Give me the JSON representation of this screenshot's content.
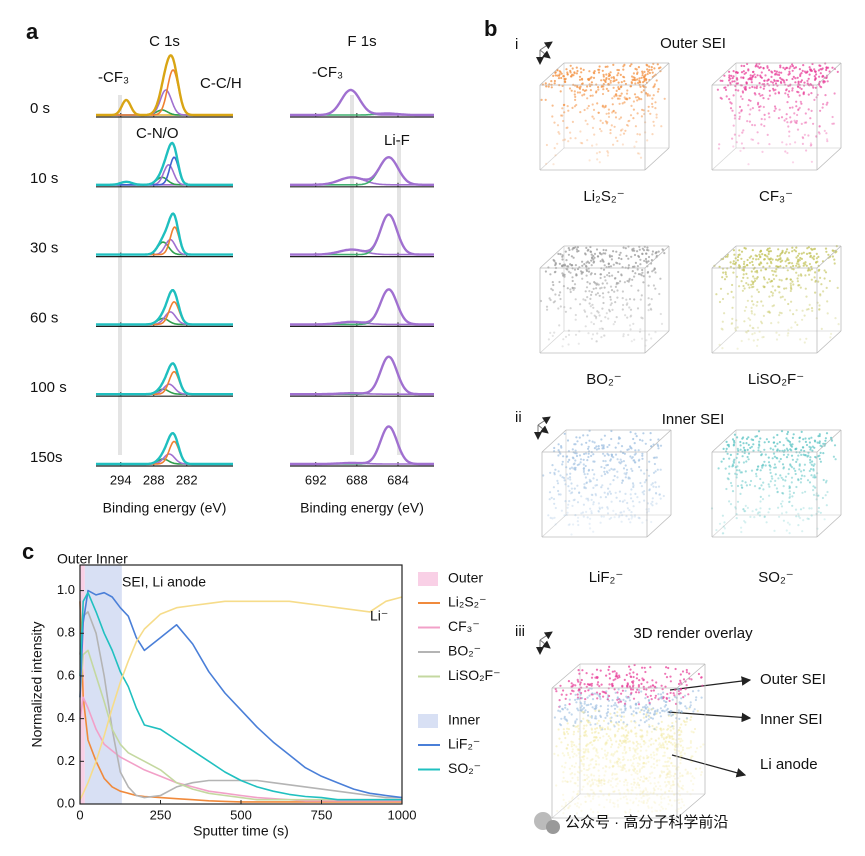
{
  "panel_labels": [
    "a",
    "b",
    "c"
  ],
  "chart_data": [
    {
      "type": "spectra",
      "title": "C 1s",
      "xlabel": "Binding energy (eV)",
      "xlim": [
        298.5,
        273.6
      ],
      "xticks": [
        294,
        288,
        282
      ],
      "row_labels": [
        "0 s",
        "10 s",
        "30 s",
        "60 s",
        "100 s",
        "150s"
      ],
      "annotations": [
        "-CF₃",
        "C-C/H",
        "C-N/O"
      ],
      "rows": [
        {
          "envelope_color": "#d9a514",
          "components": [
            {
              "center": 293,
              "height": 0.3,
              "width": 0.8,
              "color": "#e0b030"
            },
            {
              "center": 286.5,
              "height": 0.1,
              "width": 1.0,
              "color": "#30a050"
            },
            {
              "center": 285.8,
              "height": 0.5,
              "width": 1.0,
              "color": "#a070d0"
            },
            {
              "center": 284.5,
              "height": 0.9,
              "width": 1.0,
              "color": "#f08030"
            }
          ]
        },
        {
          "envelope_color": "#1fbfbf",
          "components": [
            {
              "center": 293,
              "height": 0.06,
              "width": 1.0,
              "color": "#a070d0"
            },
            {
              "center": 286.5,
              "height": 0.15,
              "width": 1.0,
              "color": "#30a050"
            },
            {
              "center": 285.3,
              "height": 0.4,
              "width": 0.9,
              "color": "#a070d0"
            },
            {
              "center": 284.3,
              "height": 0.55,
              "width": 0.8,
              "color": "#4060d0"
            }
          ]
        },
        {
          "envelope_color": "#1fbfbf",
          "components": [
            {
              "center": 286.3,
              "height": 0.25,
              "width": 1.0,
              "color": "#30a050"
            },
            {
              "center": 285,
              "height": 0.3,
              "width": 0.9,
              "color": "#a070d0"
            },
            {
              "center": 284.2,
              "height": 0.55,
              "width": 0.8,
              "color": "#f08030"
            }
          ]
        },
        {
          "envelope_color": "#1fbfbf",
          "components": [
            {
              "center": 286.3,
              "height": 0.12,
              "width": 1.0,
              "color": "#30a050"
            },
            {
              "center": 285,
              "height": 0.25,
              "width": 1.0,
              "color": "#a070d0"
            },
            {
              "center": 284.3,
              "height": 0.45,
              "width": 0.9,
              "color": "#f08030"
            }
          ]
        },
        {
          "envelope_color": "#1fbfbf",
          "components": [
            {
              "center": 286.3,
              "height": 0.1,
              "width": 1.0,
              "color": "#30a050"
            },
            {
              "center": 285.2,
              "height": 0.2,
              "width": 1.0,
              "color": "#a070d0"
            },
            {
              "center": 284.3,
              "height": 0.45,
              "width": 0.9,
              "color": "#f08030"
            }
          ]
        },
        {
          "envelope_color": "#1fbfbf",
          "components": [
            {
              "center": 286.3,
              "height": 0.1,
              "width": 1.0,
              "color": "#30a050"
            },
            {
              "center": 285.2,
              "height": 0.2,
              "width": 1.0,
              "color": "#a070d0"
            },
            {
              "center": 284.3,
              "height": 0.45,
              "width": 0.9,
              "color": "#f08030"
            }
          ]
        }
      ]
    },
    {
      "type": "spectra",
      "title": "F 1s",
      "xlabel": "Binding energy (eV)",
      "xlim": [
        694.5,
        680.5
      ],
      "xticks": [
        692,
        688,
        684
      ],
      "annotations": [
        "-CF₃",
        "Li-F"
      ],
      "rows": [
        {
          "envelope_color": "#a070d0",
          "components": [
            {
              "center": 688.6,
              "height": 0.5,
              "width": 0.9,
              "color": "#a070d0"
            },
            {
              "center": 685,
              "height": 0.03,
              "width": 1.0,
              "color": "#40b070"
            }
          ]
        },
        {
          "envelope_color": "#a070d0",
          "components": [
            {
              "center": 688.5,
              "height": 0.15,
              "width": 1.2,
              "color": "#a070d0"
            },
            {
              "center": 684.9,
              "height": 0.55,
              "width": 0.9,
              "color": "#40b070"
            }
          ]
        },
        {
          "envelope_color": "#a070d0",
          "components": [
            {
              "center": 688.5,
              "height": 0.1,
              "width": 1.2,
              "color": "#a070d0"
            },
            {
              "center": 684.9,
              "height": 0.8,
              "width": 0.8,
              "color": "#40b070"
            }
          ]
        },
        {
          "envelope_color": "#a070d0",
          "components": [
            {
              "center": 688.5,
              "height": 0.05,
              "width": 1.2,
              "color": "#a070d0"
            },
            {
              "center": 684.9,
              "height": 0.7,
              "width": 0.8,
              "color": "#40b070"
            }
          ]
        },
        {
          "envelope_color": "#a070d0",
          "components": [
            {
              "center": 688.5,
              "height": 0.02,
              "width": 1.2,
              "color": "#a070d0"
            },
            {
              "center": 684.9,
              "height": 0.75,
              "width": 0.8,
              "color": "#40b070"
            }
          ]
        },
        {
          "envelope_color": "#a070d0",
          "components": [
            {
              "center": 688.5,
              "height": 0.02,
              "width": 1.2,
              "color": "#a070d0"
            },
            {
              "center": 684.9,
              "height": 0.75,
              "width": 0.8,
              "color": "#40b070"
            }
          ]
        }
      ]
    },
    {
      "type": "line",
      "xlabel": "Sputter time (s)",
      "ylabel": "Normalized intensity",
      "xlim": [
        0,
        1000
      ],
      "ylim": [
        0,
        1.12
      ],
      "xticks": [
        0,
        250,
        500,
        750,
        1000
      ],
      "yticks": [
        {
          "value": 0,
          "label": "0.0"
        },
        0.2,
        0.4,
        0.6,
        0.8,
        {
          "value": 1,
          "label": "1.0"
        }
      ],
      "annotations": [
        "Outer Inner",
        "SEI, Li anode"
      ],
      "regions": [
        {
          "name": "Outer",
          "color": "#f9d0e6",
          "range": [
            0,
            15
          ]
        },
        {
          "name": "Inner",
          "color": "#d8e0f4",
          "range": [
            15,
            130
          ]
        }
      ],
      "x": [
        0,
        10,
        25,
        50,
        75,
        100,
        125,
        150,
        175,
        200,
        250,
        300,
        350,
        400,
        450,
        500,
        550,
        600,
        650,
        700,
        750,
        800,
        850,
        900,
        950,
        1000
      ],
      "series": [
        {
          "name": "Li₂S₂⁻",
          "color": "#f08a3c",
          "group": 0,
          "values": [
            0.95,
            0.5,
            0.3,
            0.2,
            0.12,
            0.08,
            0.06,
            0.05,
            0.04,
            0.035,
            0.03,
            0.025,
            0.02,
            0.015,
            0.012,
            0.01,
            0.01,
            0.01,
            0.01,
            0.01,
            0.01,
            0.01,
            0.01,
            0.01,
            0.01,
            0.01
          ]
        },
        {
          "name": "CF₃⁻",
          "color": "#f2a0c8",
          "group": 0,
          "values": [
            0.4,
            0.5,
            0.45,
            0.35,
            0.28,
            0.25,
            0.22,
            0.2,
            0.18,
            0.16,
            0.13,
            0.1,
            0.08,
            0.06,
            0.05,
            0.04,
            0.03,
            0.025,
            0.02,
            0.015,
            0.015,
            0.015,
            0.015,
            0.015,
            0.015,
            0.015
          ]
        },
        {
          "name": "BO₂⁻",
          "color": "#b4b4b4",
          "group": 0,
          "values": [
            0.7,
            0.88,
            0.9,
            0.8,
            0.6,
            0.35,
            0.15,
            0.08,
            0.04,
            0.03,
            0.04,
            0.08,
            0.1,
            0.11,
            0.11,
            0.11,
            0.11,
            0.1,
            0.09,
            0.08,
            0.07,
            0.06,
            0.05,
            0.04,
            0.03,
            0.03
          ]
        },
        {
          "name": "LiSO₂F⁻",
          "color": "#c4d8a0",
          "group": 0,
          "values": [
            0.5,
            0.7,
            0.72,
            0.6,
            0.48,
            0.35,
            0.28,
            0.24,
            0.22,
            0.2,
            0.16,
            0.1,
            0.07,
            0.05,
            0.04,
            0.03,
            0.02,
            0.02,
            0.02,
            0.02,
            0.02,
            0.02,
            0.02,
            0.02,
            0.02,
            0.02
          ]
        },
        {
          "name": "LiF₂⁻",
          "color": "#4a7fd8",
          "group": 1,
          "values": [
            0.5,
            0.85,
            1.0,
            0.98,
            0.99,
            0.97,
            0.92,
            0.88,
            0.78,
            0.72,
            0.78,
            0.84,
            0.75,
            0.62,
            0.52,
            0.44,
            0.36,
            0.29,
            0.23,
            0.17,
            0.13,
            0.1,
            0.07,
            0.05,
            0.04,
            0.03
          ]
        },
        {
          "name": "SO₂⁻",
          "color": "#20c0c0",
          "group": 1,
          "values": [
            0.6,
            0.95,
            0.99,
            0.9,
            0.8,
            0.72,
            0.62,
            0.55,
            0.45,
            0.37,
            0.35,
            0.3,
            0.25,
            0.2,
            0.15,
            0.11,
            0.08,
            0.06,
            0.045,
            0.035,
            0.03,
            0.02,
            0.02,
            0.02,
            0.02,
            0.02
          ]
        },
        {
          "name": "Li⁻",
          "color": "#f6dc8a",
          "in_legend": false,
          "values": [
            0.02,
            0.05,
            0.1,
            0.2,
            0.32,
            0.45,
            0.57,
            0.67,
            0.76,
            0.82,
            0.89,
            0.92,
            0.93,
            0.94,
            0.95,
            0.95,
            0.95,
            0.95,
            0.95,
            0.94,
            0.93,
            0.92,
            0.91,
            0.9,
            0.95,
            0.97
          ]
        }
      ]
    }
  ],
  "renders": {
    "sections": [
      {
        "numeral": "i",
        "title": "Outer SEI"
      },
      {
        "numeral": "ii",
        "title": "Inner SEI"
      },
      {
        "numeral": "iii",
        "title": "3D render overlay"
      }
    ],
    "species": [
      {
        "label": "Li₂S₂⁻",
        "color": "#f39040"
      },
      {
        "label": "CF₃⁻",
        "color": "#e8409a"
      },
      {
        "label": "BO₂⁻",
        "color": "#9a9a9a"
      },
      {
        "label": "LiSO₂F⁻",
        "color": "#c2c258"
      },
      {
        "label": "LiF₂⁻",
        "color": "#9cbee0"
      },
      {
        "label": "SO₂⁻",
        "color": "#5cc4c4"
      }
    ],
    "overlay_labels": [
      "Outer SEI",
      "Inner  SEI",
      "Li anode"
    ]
  },
  "watermark": "公众号 · 高分子科学前沿"
}
